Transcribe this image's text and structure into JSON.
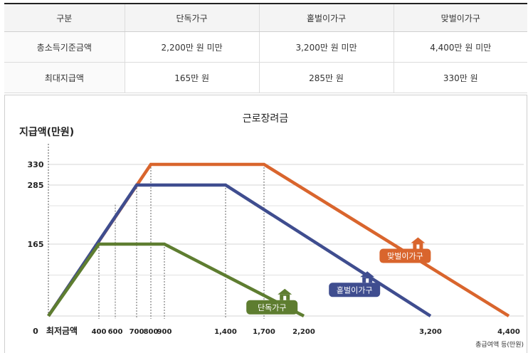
{
  "table": {
    "headers": [
      "구분",
      "단독가구",
      "홑벌이가구",
      "맞벌이가구"
    ],
    "rows": [
      {
        "label": "총소득기준금액",
        "values": [
          "2,200만 원 미만",
          "3,200만 원 미만",
          "4,400만 원 미만"
        ]
      },
      {
        "label": "최대지급액",
        "values": [
          "165만 원",
          "285만 원",
          "330만 원"
        ]
      }
    ]
  },
  "chart_data": {
    "type": "line",
    "title": "근로장려금",
    "ylabel": "지급액(만원)",
    "xlabel": "총급여액 등(만원)",
    "x_origin_label": "최저금액",
    "y_zero_label": "0",
    "x_ticks": [
      {
        "value": 400,
        "label": "400"
      },
      {
        "value": 600,
        "label": "600"
      },
      {
        "value": 700,
        "label": "700"
      },
      {
        "value": 800,
        "label": "800"
      },
      {
        "value": 900,
        "label": "900"
      },
      {
        "value": 1400,
        "label": "1,400"
      },
      {
        "value": 1700,
        "label": "1,700"
      },
      {
        "value": 2200,
        "label": "2,200"
      },
      {
        "value": 3200,
        "label": "3,200"
      },
      {
        "value": 4400,
        "label": "4,400"
      }
    ],
    "y_ticks": [
      {
        "value": 165,
        "label": "165"
      },
      {
        "value": 285,
        "label": "285"
      },
      {
        "value": 330,
        "label": "330"
      }
    ],
    "ylim": [
      0,
      330
    ],
    "grid": true,
    "series": [
      {
        "name": "맞벌이가구",
        "color": "#d9652d",
        "icon": "house-icon",
        "points": [
          [
            0,
            0
          ],
          [
            800,
            330
          ],
          [
            1700,
            330
          ],
          [
            4400,
            0
          ]
        ]
      },
      {
        "name": "홑벌이가구",
        "color": "#3f4d8f",
        "icon": "house-icon",
        "points": [
          [
            0,
            0
          ],
          [
            700,
            285
          ],
          [
            1400,
            285
          ],
          [
            3200,
            0
          ]
        ]
      },
      {
        "name": "단독가구",
        "color": "#5e7d30",
        "icon": "house-icon",
        "points": [
          [
            0,
            0
          ],
          [
            400,
            165
          ],
          [
            900,
            165
          ],
          [
            2200,
            0
          ]
        ]
      }
    ]
  }
}
